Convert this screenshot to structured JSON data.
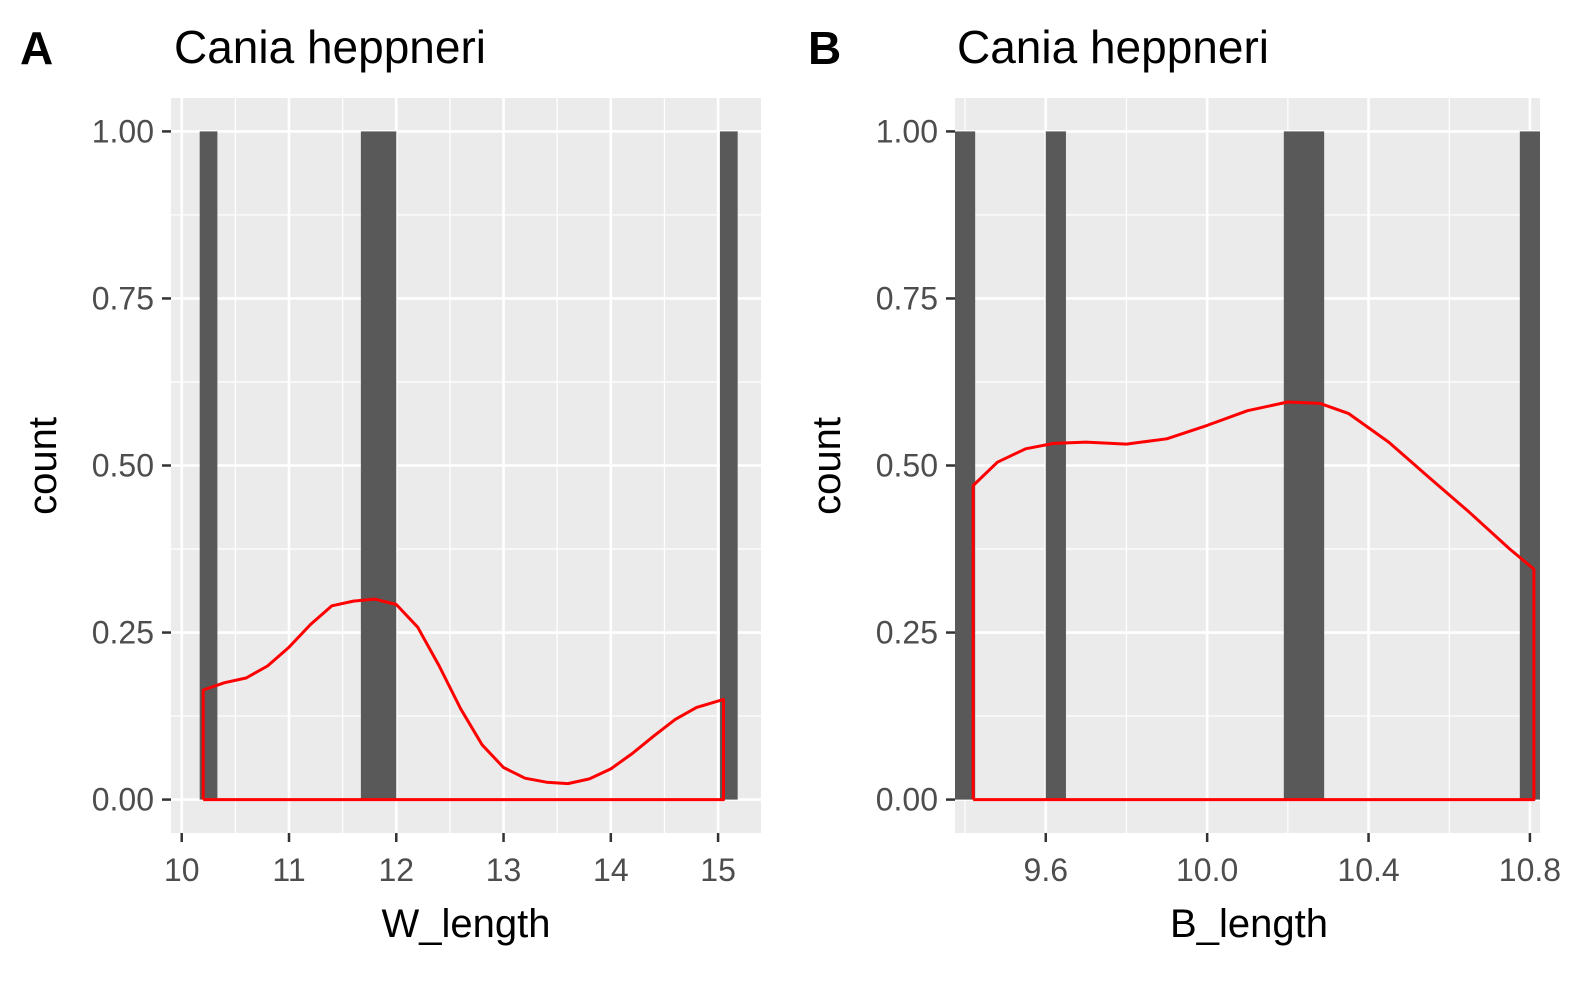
{
  "colors": {
    "panel_background": "#ebebeb",
    "grid_major": "#ffffff",
    "bar_fill": "#595959",
    "density_line": "#ff0000",
    "tick_label": "#4d4d4d",
    "text": "#000000"
  },
  "chart_data": [
    {
      "type": "bar",
      "tag": "A",
      "title": "Cania heppneri",
      "xlabel": "W_length",
      "ylabel": "count",
      "xlim": [
        9.9,
        15.4
      ],
      "ylim": [
        -0.05,
        1.05
      ],
      "x_ticks": [
        10,
        11,
        12,
        13,
        14,
        15
      ],
      "x_tick_labels": [
        "10",
        "11",
        "12",
        "13",
        "14",
        "15"
      ],
      "y_ticks": [
        0,
        0.25,
        0.5,
        0.75,
        1
      ],
      "y_tick_labels": [
        "0.00",
        "0.25",
        "0.50",
        "0.75",
        "1.00"
      ],
      "grid": true,
      "bars": [
        {
          "x": 10.25,
          "value": 1,
          "width": 0.165
        },
        {
          "x": 11.835,
          "value": 1,
          "width": 0.33
        },
        {
          "x": 15.1,
          "value": 1,
          "width": 0.165
        }
      ],
      "density": {
        "color": "#ff0000",
        "points": [
          [
            10.2,
            0.0
          ],
          [
            10.2,
            0.164
          ],
          [
            10.4,
            0.175
          ],
          [
            10.6,
            0.182
          ],
          [
            10.8,
            0.2
          ],
          [
            11.0,
            0.228
          ],
          [
            11.2,
            0.262
          ],
          [
            11.4,
            0.29
          ],
          [
            11.6,
            0.297
          ],
          [
            11.8,
            0.3
          ],
          [
            12.0,
            0.292
          ],
          [
            12.2,
            0.258
          ],
          [
            12.4,
            0.2
          ],
          [
            12.6,
            0.136
          ],
          [
            12.8,
            0.082
          ],
          [
            13.0,
            0.048
          ],
          [
            13.2,
            0.032
          ],
          [
            13.4,
            0.026
          ],
          [
            13.6,
            0.024
          ],
          [
            13.8,
            0.031
          ],
          [
            14.0,
            0.046
          ],
          [
            14.2,
            0.069
          ],
          [
            14.4,
            0.095
          ],
          [
            14.6,
            0.12
          ],
          [
            14.8,
            0.138
          ],
          [
            15.05,
            0.15
          ],
          [
            15.05,
            0.0
          ],
          [
            10.2,
            0.0
          ]
        ]
      }
    },
    {
      "type": "bar",
      "tag": "B",
      "title": "Cania heppneri",
      "xlabel": "B_length",
      "ylabel": "count",
      "xlim": [
        9.375,
        10.825
      ],
      "ylim": [
        -0.05,
        1.05
      ],
      "x_ticks": [
        9.6,
        10.0,
        10.4,
        10.8
      ],
      "x_tick_labels": [
        "9.6",
        "10.0",
        "10.4",
        "10.8"
      ],
      "y_ticks": [
        0,
        0.25,
        0.5,
        0.75,
        1
      ],
      "y_tick_labels": [
        "0.00",
        "0.25",
        "0.50",
        "0.75",
        "1.00"
      ],
      "grid": true,
      "bars": [
        {
          "x": 9.4,
          "value": 1,
          "width": 0.05
        },
        {
          "x": 9.625,
          "value": 1,
          "width": 0.05
        },
        {
          "x": 10.24,
          "value": 1,
          "width": 0.1
        },
        {
          "x": 10.8,
          "value": 1,
          "width": 0.05
        }
      ],
      "density": {
        "color": "#ff0000",
        "points": [
          [
            9.42,
            0.0
          ],
          [
            9.42,
            0.47
          ],
          [
            9.48,
            0.505
          ],
          [
            9.55,
            0.525
          ],
          [
            9.62,
            0.533
          ],
          [
            9.7,
            0.535
          ],
          [
            9.8,
            0.532
          ],
          [
            9.9,
            0.54
          ],
          [
            10.0,
            0.56
          ],
          [
            10.1,
            0.582
          ],
          [
            10.2,
            0.595
          ],
          [
            10.28,
            0.593
          ],
          [
            10.35,
            0.578
          ],
          [
            10.45,
            0.535
          ],
          [
            10.55,
            0.482
          ],
          [
            10.65,
            0.43
          ],
          [
            10.75,
            0.375
          ],
          [
            10.81,
            0.345
          ],
          [
            10.81,
            0.0
          ],
          [
            9.42,
            0.0
          ]
        ]
      }
    }
  ]
}
